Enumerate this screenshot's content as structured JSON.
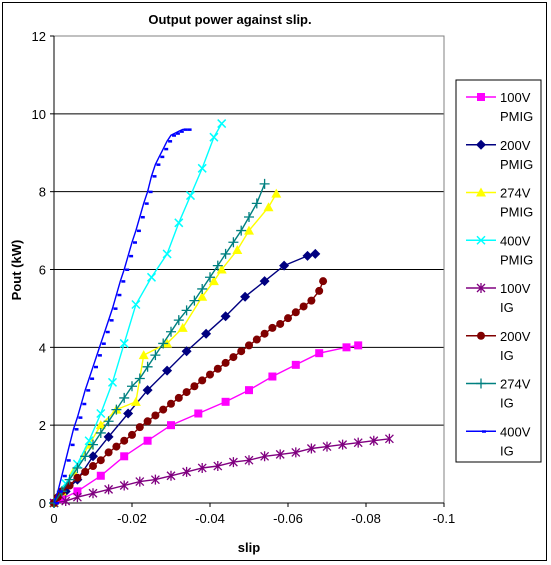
{
  "chart_data": {
    "type": "line",
    "title": "Output power against slip.",
    "xlabel": "slip",
    "ylabel": "Pout (kW)",
    "xlim": [
      0,
      -0.1
    ],
    "ylim": [
      0,
      12
    ],
    "xticks": [
      0,
      -0.02,
      -0.04,
      -0.06,
      -0.08,
      -0.1
    ],
    "xtick_labels": [
      "0",
      "-0.02",
      "-0.04",
      "-0.06",
      "-0.08",
      "-0.1"
    ],
    "yticks": [
      0,
      2,
      4,
      6,
      8,
      10,
      12
    ],
    "ytick_labels": [
      "0",
      "2",
      "4",
      "6",
      "8",
      "10",
      "12"
    ],
    "grid": "horizontal",
    "legend": "right",
    "series": [
      {
        "name": "100V PMIG",
        "legend_lines": [
          "100V",
          "PMIG"
        ],
        "color": "#ff00ff",
        "marker": "square",
        "x": [
          0,
          -0.002,
          -0.006,
          -0.012,
          -0.018,
          -0.024,
          -0.03,
          -0.037,
          -0.044,
          -0.05,
          -0.056,
          -0.062,
          -0.068,
          -0.075,
          -0.078
        ],
        "y": [
          0,
          0.1,
          0.3,
          0.7,
          1.2,
          1.6,
          2.0,
          2.3,
          2.6,
          2.9,
          3.25,
          3.55,
          3.85,
          4.0,
          4.05
        ]
      },
      {
        "name": "200V PMIG",
        "legend_lines": [
          "200V",
          "PMIG"
        ],
        "color": "#000080",
        "marker": "diamond",
        "x": [
          0,
          -0.003,
          -0.006,
          -0.01,
          -0.014,
          -0.019,
          -0.024,
          -0.029,
          -0.034,
          -0.039,
          -0.044,
          -0.049,
          -0.054,
          -0.059,
          -0.065,
          -0.067
        ],
        "y": [
          0,
          0.3,
          0.6,
          1.2,
          1.7,
          2.3,
          2.9,
          3.4,
          3.9,
          4.35,
          4.8,
          5.3,
          5.7,
          6.1,
          6.35,
          6.4
        ]
      },
      {
        "name": "274V PMIG",
        "legend_lines": [
          "274V",
          "PMIG"
        ],
        "color": "#ffff00",
        "marker": "triangle",
        "x": [
          0,
          -0.002,
          -0.005,
          -0.009,
          -0.012,
          -0.016,
          -0.021,
          -0.023,
          -0.029,
          -0.033,
          -0.038,
          -0.041,
          -0.043,
          -0.047,
          -0.05,
          -0.055,
          -0.057
        ],
        "y": [
          0,
          0.3,
          0.8,
          1.5,
          2.0,
          2.4,
          2.6,
          3.8,
          4.1,
          4.5,
          5.3,
          5.7,
          6.0,
          6.5,
          7.0,
          7.6,
          7.95
        ]
      },
      {
        "name": "400V PMIG",
        "legend_lines": [
          "400V",
          "PMIG"
        ],
        "color": "#00ffff",
        "marker": "x",
        "x": [
          0,
          -0.003,
          -0.006,
          -0.009,
          -0.012,
          -0.015,
          -0.018,
          -0.021,
          -0.025,
          -0.029,
          -0.032,
          -0.035,
          -0.038,
          -0.041,
          -0.043
        ],
        "y": [
          0,
          0.5,
          1.0,
          1.6,
          2.3,
          3.1,
          4.1,
          5.1,
          5.8,
          6.4,
          7.2,
          7.9,
          8.6,
          9.4,
          9.75
        ]
      },
      {
        "name": "100V IG",
        "legend_lines": [
          "100V",
          "IG"
        ],
        "color": "#800080",
        "marker": "star",
        "x": [
          0,
          -0.003,
          -0.006,
          -0.01,
          -0.014,
          -0.018,
          -0.022,
          -0.026,
          -0.03,
          -0.034,
          -0.038,
          -0.042,
          -0.046,
          -0.05,
          -0.054,
          -0.058,
          -0.062,
          -0.066,
          -0.07,
          -0.074,
          -0.078,
          -0.082,
          -0.086
        ],
        "y": [
          0,
          0.05,
          0.15,
          0.25,
          0.35,
          0.45,
          0.55,
          0.6,
          0.7,
          0.8,
          0.9,
          0.95,
          1.05,
          1.1,
          1.2,
          1.25,
          1.3,
          1.4,
          1.45,
          1.5,
          1.55,
          1.6,
          1.65
        ]
      },
      {
        "name": "200V IG",
        "legend_lines": [
          "200V",
          "IG"
        ],
        "color": "#800000",
        "marker": "circle",
        "x": [
          0,
          -0.001,
          -0.002,
          -0.004,
          -0.006,
          -0.008,
          -0.01,
          -0.012,
          -0.014,
          -0.016,
          -0.018,
          -0.02,
          -0.022,
          -0.024,
          -0.026,
          -0.028,
          -0.03,
          -0.032,
          -0.034,
          -0.036,
          -0.038,
          -0.04,
          -0.042,
          -0.044,
          -0.046,
          -0.048,
          -0.05,
          -0.052,
          -0.054,
          -0.056,
          -0.058,
          -0.06,
          -0.062,
          -0.064,
          -0.066,
          -0.068,
          -0.069
        ],
        "y": [
          0,
          0.15,
          0.3,
          0.45,
          0.65,
          0.8,
          0.95,
          1.1,
          1.3,
          1.45,
          1.6,
          1.75,
          1.95,
          2.1,
          2.25,
          2.4,
          2.55,
          2.7,
          2.85,
          3.0,
          3.15,
          3.3,
          3.45,
          3.6,
          3.75,
          3.9,
          4.05,
          4.2,
          4.35,
          4.5,
          4.6,
          4.75,
          4.9,
          5.05,
          5.2,
          5.45,
          5.7
        ]
      },
      {
        "name": "274V IG",
        "legend_lines": [
          "274V",
          "IG"
        ],
        "color": "#008080",
        "marker": "plus",
        "x": [
          0,
          -0.002,
          -0.004,
          -0.006,
          -0.008,
          -0.01,
          -0.012,
          -0.014,
          -0.016,
          -0.018,
          -0.02,
          -0.022,
          -0.024,
          -0.026,
          -0.028,
          -0.03,
          -0.032,
          -0.034,
          -0.036,
          -0.038,
          -0.04,
          -0.042,
          -0.044,
          -0.046,
          -0.048,
          -0.05,
          -0.052,
          -0.054
        ],
        "y": [
          0,
          0.3,
          0.6,
          0.9,
          1.2,
          1.5,
          1.8,
          2.1,
          2.4,
          2.7,
          3.0,
          3.2,
          3.5,
          3.8,
          4.1,
          4.4,
          4.7,
          4.95,
          5.2,
          5.5,
          5.8,
          6.1,
          6.4,
          6.7,
          7.0,
          7.35,
          7.7,
          8.2
        ]
      },
      {
        "name": "400V IG",
        "legend_lines": [
          "400V",
          "IG"
        ],
        "color": "#0000ff",
        "marker": "dash",
        "x": [
          0,
          -0.001,
          -0.002,
          -0.003,
          -0.004,
          -0.005,
          -0.006,
          -0.007,
          -0.008,
          -0.009,
          -0.01,
          -0.011,
          -0.012,
          -0.013,
          -0.014,
          -0.015,
          -0.016,
          -0.017,
          -0.018,
          -0.019,
          -0.02,
          -0.021,
          -0.022,
          -0.023,
          -0.024,
          -0.025,
          -0.026,
          -0.027,
          -0.028,
          -0.029,
          -0.03,
          -0.031,
          -0.032,
          -0.033,
          -0.034
        ],
        "y": [
          0,
          0.3,
          0.7,
          1.1,
          1.5,
          1.9,
          2.2,
          2.55,
          2.9,
          3.2,
          3.5,
          3.8,
          4.1,
          4.4,
          4.7,
          5.0,
          5.35,
          5.7,
          6.0,
          6.35,
          6.7,
          7.0,
          7.35,
          7.7,
          8.0,
          8.4,
          8.7,
          8.9,
          9.1,
          9.3,
          9.45,
          9.5,
          9.55,
          9.6,
          9.6
        ]
      }
    ]
  }
}
